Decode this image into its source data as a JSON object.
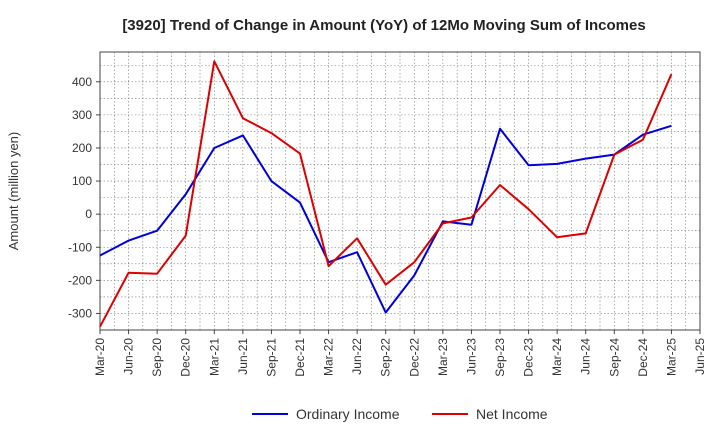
{
  "chart_data": {
    "type": "line",
    "title": "[3920]  Trend of Change in Amount (YoY) of 12Mo Moving Sum of Incomes",
    "ylabel": "Amount (million yen)",
    "xlabel": "",
    "ylim": [
      -350,
      490
    ],
    "yticks": [
      -300,
      -200,
      -100,
      0,
      100,
      200,
      300,
      400
    ],
    "categories": [
      "Mar-20",
      "Jun-20",
      "Sep-20",
      "Dec-20",
      "Mar-21",
      "Jun-21",
      "Sep-21",
      "Dec-21",
      "Mar-22",
      "Jun-22",
      "Sep-22",
      "Dec-22",
      "Mar-23",
      "Jun-23",
      "Sep-23",
      "Dec-23",
      "Mar-24",
      "Jun-24",
      "Sep-24",
      "Dec-24",
      "Mar-25",
      "Jun-25"
    ],
    "grid": true,
    "legend_position": "bottom",
    "series": [
      {
        "name": "Ordinary Income",
        "color": "#0000dd",
        "values": [
          -125,
          -80,
          -50,
          60,
          200,
          238,
          100,
          35,
          -145,
          -115,
          -297,
          -185,
          -22,
          -32,
          258,
          148,
          152,
          168,
          180,
          240,
          267,
          null
        ]
      },
      {
        "name": "Net Income",
        "color": "#dd0000",
        "values": [
          -340,
          -177,
          -180,
          -65,
          462,
          290,
          245,
          183,
          -157,
          -73,
          -213,
          -145,
          -28,
          -10,
          88,
          15,
          -70,
          -58,
          180,
          225,
          423,
          null
        ]
      }
    ]
  }
}
